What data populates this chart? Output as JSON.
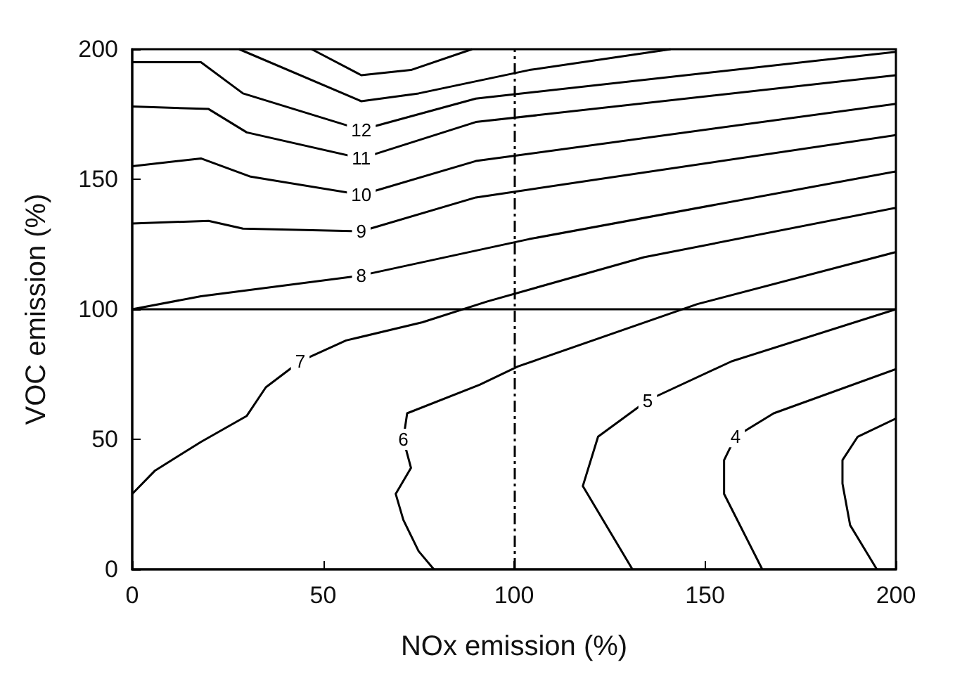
{
  "chart_data": {
    "type": "line",
    "xlabel": "NOx emission (%)",
    "ylabel": "VOC emission (%)",
    "xlim": [
      0,
      200
    ],
    "xticks": [
      0,
      50,
      100,
      150,
      200
    ],
    "ylim": [
      0,
      200
    ],
    "yticks": [
      0,
      50,
      100,
      150,
      200
    ],
    "grid": false,
    "legend": false,
    "marker": "none",
    "line_style": "solid",
    "series": [
      {
        "color": "#000000",
        "x": [
          47,
          60,
          73,
          89
        ],
        "values": [
          200,
          190,
          192,
          200
        ]
      },
      {
        "color": "#000000",
        "x": [
          28,
          60,
          75,
          104,
          141
        ],
        "values": [
          200,
          180,
          183,
          192,
          200
        ]
      },
      {
        "name": "12",
        "color": "#000000",
        "x": [
          0,
          18,
          29,
          60,
          90,
          200
        ],
        "values": [
          195,
          195,
          183,
          169,
          181,
          199
        ]
      },
      {
        "name": "11",
        "color": "#000000",
        "x": [
          0,
          20,
          30,
          60,
          90,
          200
        ],
        "values": [
          178,
          177,
          168,
          158,
          172,
          190
        ]
      },
      {
        "name": "10",
        "color": "#000000",
        "x": [
          0,
          18,
          31,
          60,
          90,
          200
        ],
        "values": [
          155,
          158,
          151,
          144,
          157,
          179
        ]
      },
      {
        "name": "9",
        "color": "#000000",
        "x": [
          0,
          20,
          29,
          60,
          90,
          200
        ],
        "values": [
          133,
          134,
          131,
          130,
          143,
          167
        ]
      },
      {
        "name": "8",
        "color": "#000000",
        "x": [
          0,
          18,
          60,
          104,
          200
        ],
        "values": [
          100,
          105,
          113,
          127,
          153
        ]
      },
      {
        "name": "7",
        "color": "#000000",
        "x": [
          0,
          6,
          18,
          30,
          35,
          44,
          56,
          76,
          93,
          134,
          200
        ],
        "values": [
          29,
          38,
          49,
          59,
          70,
          80,
          88,
          95,
          103,
          120,
          139
        ]
      },
      {
        "name": "6",
        "color": "#000000",
        "x": [
          79,
          75,
          71,
          69,
          73,
          71,
          72,
          91,
          101,
          148,
          200
        ],
        "values": [
          0,
          7,
          19,
          29,
          39,
          50,
          60,
          71,
          78,
          102,
          122
        ]
      },
      {
        "name": "5",
        "color": "#000000",
        "x": [
          131,
          118,
          122,
          135,
          157,
          200
        ],
        "values": [
          0,
          32,
          51,
          65,
          80,
          100
        ]
      },
      {
        "name": "4",
        "color": "#000000",
        "x": [
          165,
          155,
          155,
          158,
          168,
          200
        ],
        "values": [
          0,
          29,
          42,
          51,
          60,
          77
        ]
      },
      {
        "color": "#000000",
        "x": [
          195,
          188,
          186,
          186,
          190,
          200
        ],
        "values": [
          0,
          17,
          33,
          42,
          51,
          58
        ]
      }
    ],
    "ref_lines": [
      {
        "axis": "y",
        "value": 100,
        "color": "#000000",
        "line_style": "solid"
      },
      {
        "axis": "x",
        "value": 100,
        "color": "#000000",
        "line_style": "dashed"
      }
    ]
  }
}
